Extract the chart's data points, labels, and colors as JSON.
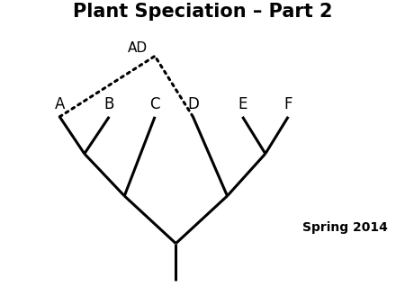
{
  "title": "Plant Speciation – Part 2",
  "title_fontsize": 15,
  "title_fontweight": "bold",
  "subtitle": "Spring 2014",
  "subtitle_fontsize": 10,
  "subtitle_fontweight": "bold",
  "background_color": "#ffffff",
  "line_color": "#000000",
  "line_width": 2.2,
  "labels": [
    "A",
    "B",
    "C",
    "D",
    "E",
    "F"
  ],
  "label_fontsize": 12,
  "AD_label": "AD",
  "AD_fontsize": 11
}
